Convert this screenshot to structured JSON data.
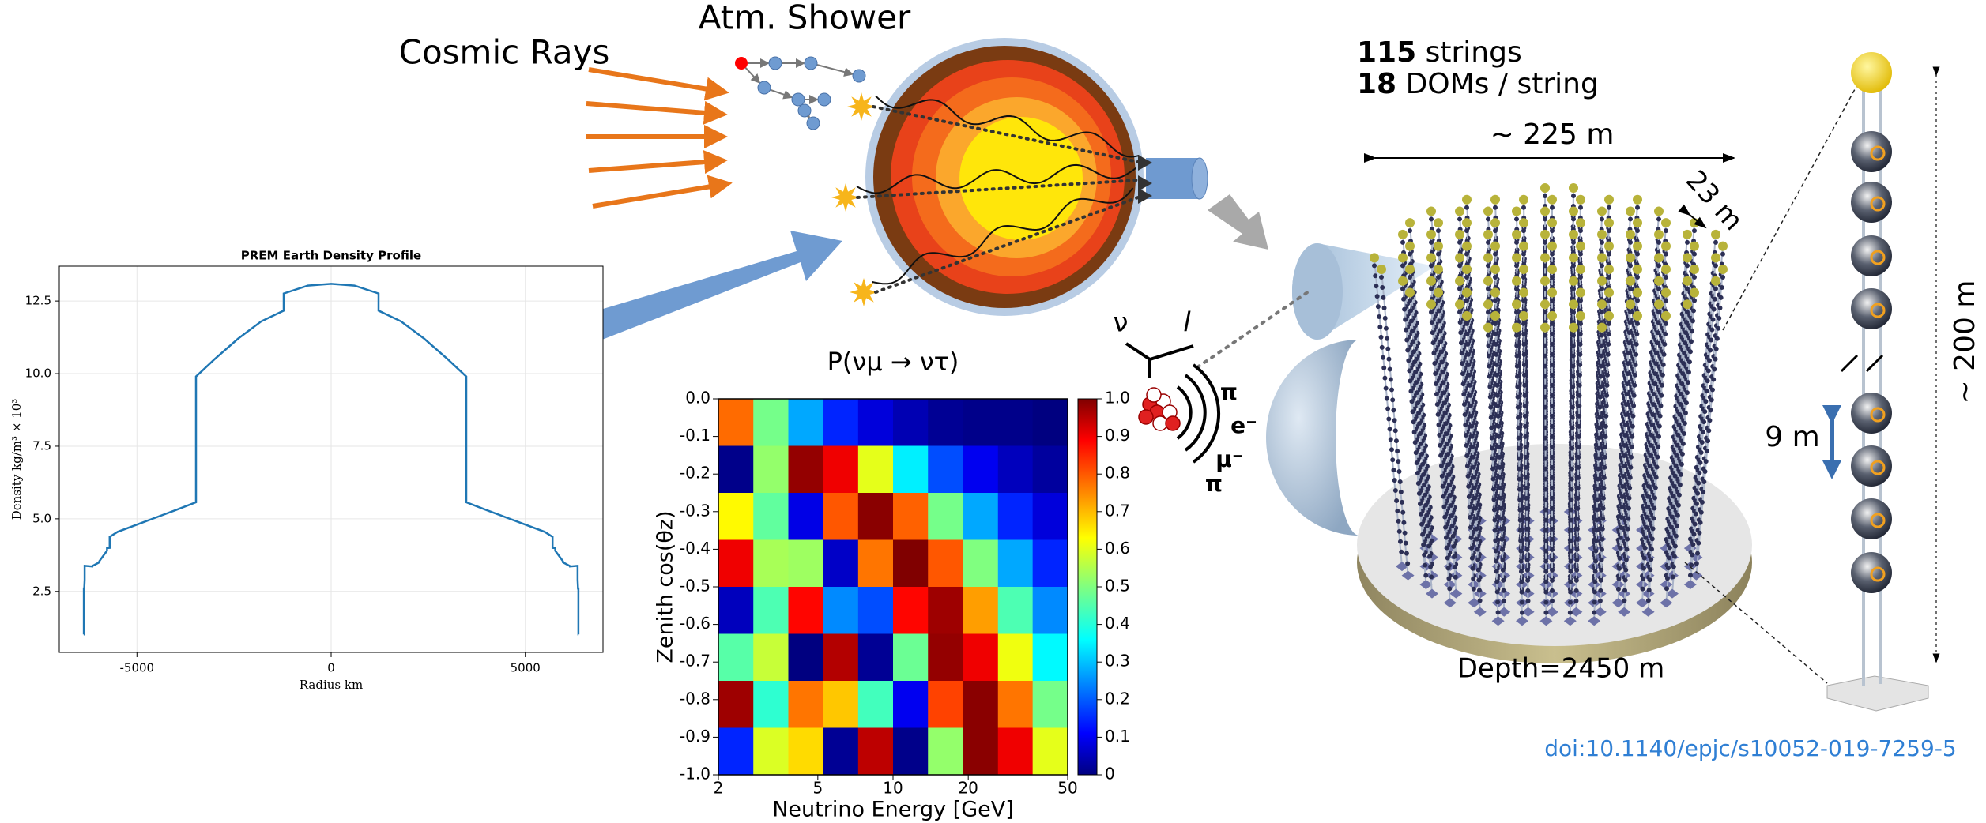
{
  "labels": {
    "cosmic_rays": "Cosmic Rays",
    "atm_shower": "Atm. Shower",
    "neutrino": "ν",
    "lepton": "l",
    "pion_1": "π",
    "electron": "e⁻",
    "muon": "μ⁻",
    "pion_2": "π"
  },
  "detector": {
    "strings_count": "115",
    "strings_text": "strings",
    "doms_count": "18",
    "doms_text": "DOMs / string",
    "width": "~ 225 m",
    "spacing": "23 m",
    "height": "~ 200 m",
    "dom_spacing": "9 m",
    "depth": "Depth=2450 m",
    "doi": "doi:10.1140/epjc/s10052-019-7259-5"
  },
  "chart_data": [
    {
      "type": "line",
      "title": "PREM Earth Density Profile",
      "xlabel": "Radius km",
      "ylabel": "Density kg/m³ × 10³",
      "color": "#1f77b4",
      "grid": true,
      "xlim": [
        -7000,
        7000
      ],
      "ylim": [
        0.4,
        13.7
      ],
      "xticks": [
        -5000,
        0,
        5000
      ],
      "yticks": [
        2.5,
        {
          "value": 5,
          "label": "5.0"
        },
        7.5,
        {
          "value": 10,
          "label": "10.0"
        },
        12.5
      ],
      "x": [
        -6371,
        -6368,
        -6368,
        -6356,
        -6346,
        -6346,
        -6151,
        -6151,
        -5971,
        -5971,
        -5771,
        -5771,
        -5701,
        -5701,
        -5500,
        -5000,
        -4500,
        -4000,
        -3480,
        -3480,
        -3000,
        -2400,
        -1800,
        -1221,
        -1221,
        -600,
        0,
        600,
        1221,
        1221,
        1800,
        2400,
        3000,
        3480,
        3480,
        4000,
        4500,
        5000,
        5500,
        5701,
        5701,
        5771,
        5771,
        5971,
        5971,
        6151,
        6151,
        6346,
        6346,
        6356,
        6368,
        6368,
        6371
      ],
      "values": [
        1.02,
        1.02,
        2.6,
        2.6,
        2.9,
        3.38,
        3.36,
        3.37,
        3.5,
        3.54,
        3.9,
        3.99,
        4.0,
        4.38,
        4.55,
        4.8,
        5.05,
        5.3,
        5.57,
        9.9,
        10.5,
        11.2,
        11.8,
        12.17,
        12.76,
        13.03,
        13.09,
        13.03,
        12.76,
        12.17,
        11.8,
        11.2,
        10.5,
        9.9,
        5.57,
        5.3,
        5.05,
        4.8,
        4.55,
        4.38,
        4.0,
        3.99,
        3.9,
        3.54,
        3.5,
        3.37,
        3.36,
        3.38,
        2.9,
        2.6,
        2.6,
        1.02,
        1.02
      ]
    },
    {
      "type": "heatmap",
      "title": "P(νμ → ντ)",
      "xlabel": "Neutrino Energy [GeV]",
      "ylabel": "Zenith cos(θz)",
      "log_x": true,
      "colormap": "jet",
      "xlim": [
        2,
        50
      ],
      "ylim": [
        -1,
        0
      ],
      "xticks": [
        2,
        5,
        10,
        20,
        50
      ],
      "yticks": [
        {
          "value": 0,
          "label": "0.0"
        },
        -0.1,
        -0.2,
        -0.3,
        -0.4,
        -0.5,
        -0.6,
        -0.7,
        -0.8,
        -0.9,
        {
          "value": -1,
          "label": "-1.0"
        }
      ],
      "x_edges": [
        2,
        2.76,
        3.81,
        5.26,
        7.25,
        10.0,
        13.8,
        19.0,
        26.3,
        36.2,
        50
      ],
      "y_edges": [
        0,
        -0.125,
        -0.25,
        -0.375,
        -0.5,
        -0.625,
        -0.75,
        -0.875,
        -1
      ],
      "z": [
        [
          0.77,
          0.49,
          0.29,
          0.16,
          0.09,
          0.05,
          0.02,
          0.01,
          0.01,
          0.0
        ],
        [
          0.01,
          0.52,
          0.98,
          0.89,
          0.6,
          0.36,
          0.2,
          0.11,
          0.06,
          0.03
        ],
        [
          0.63,
          0.47,
          0.1,
          0.79,
          0.99,
          0.78,
          0.49,
          0.29,
          0.16,
          0.09
        ],
        [
          0.89,
          0.54,
          0.53,
          0.07,
          0.76,
          1.0,
          0.79,
          0.5,
          0.29,
          0.16
        ],
        [
          0.06,
          0.45,
          0.87,
          0.26,
          0.2,
          0.87,
          0.97,
          0.72,
          0.45,
          0.26
        ],
        [
          0.46,
          0.57,
          0.0,
          0.95,
          0.02,
          0.48,
          0.98,
          0.89,
          0.61,
          0.37
        ],
        [
          0.97,
          0.42,
          0.76,
          0.68,
          0.44,
          0.11,
          0.81,
          0.99,
          0.76,
          0.49
        ],
        [
          0.16,
          0.59,
          0.66,
          0.02,
          0.94,
          0.01,
          0.52,
          0.99,
          0.89,
          0.6
        ]
      ],
      "colorbar": {
        "lim": [
          0,
          1
        ],
        "ticks": [
          0,
          0.1,
          0.2,
          0.3,
          0.4,
          0.5,
          0.6,
          0.7,
          0.8,
          0.9,
          {
            "value": 1,
            "label": "1.0"
          }
        ]
      }
    }
  ]
}
